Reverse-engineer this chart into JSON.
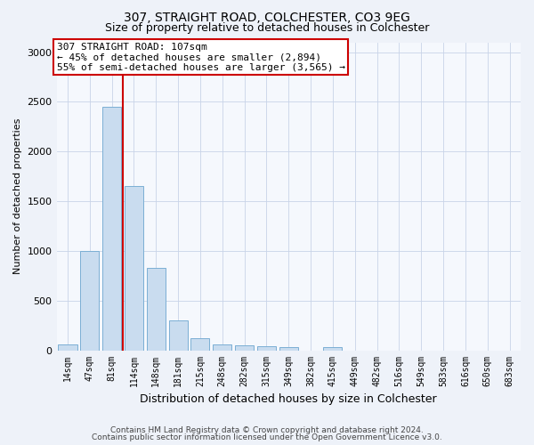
{
  "title_line1": "307, STRAIGHT ROAD, COLCHESTER, CO3 9EG",
  "title_line2": "Size of property relative to detached houses in Colchester",
  "xlabel": "Distribution of detached houses by size in Colchester",
  "ylabel": "Number of detached properties",
  "bar_labels": [
    "14sqm",
    "47sqm",
    "81sqm",
    "114sqm",
    "148sqm",
    "181sqm",
    "215sqm",
    "248sqm",
    "282sqm",
    "315sqm",
    "349sqm",
    "382sqm",
    "415sqm",
    "449sqm",
    "482sqm",
    "516sqm",
    "549sqm",
    "583sqm",
    "616sqm",
    "650sqm",
    "683sqm"
  ],
  "bar_values": [
    60,
    1000,
    2450,
    1650,
    830,
    300,
    120,
    55,
    50,
    45,
    30,
    0,
    30,
    0,
    0,
    0,
    0,
    0,
    0,
    0,
    0
  ],
  "bar_color": "#c9dcef",
  "bar_edgecolor": "#7bafd4",
  "vline_x": 2.5,
  "vline_color": "#cc0000",
  "ylim": [
    0,
    3100
  ],
  "yticks": [
    0,
    500,
    1000,
    1500,
    2000,
    2500,
    3000
  ],
  "annotation_text": "307 STRAIGHT ROAD: 107sqm\n← 45% of detached houses are smaller (2,894)\n55% of semi-detached houses are larger (3,565) →",
  "footer_line1": "Contains HM Land Registry data © Crown copyright and database right 2024.",
  "footer_line2": "Contains public sector information licensed under the Open Government Licence v3.0.",
  "bg_color": "#eef2f9",
  "plot_bg_color": "#f5f8fd",
  "grid_color": "#c8d4e8",
  "title1_fontsize": 10,
  "title2_fontsize": 9,
  "ylabel_fontsize": 8,
  "xlabel_fontsize": 9,
  "tick_fontsize": 7,
  "annot_fontsize": 8
}
